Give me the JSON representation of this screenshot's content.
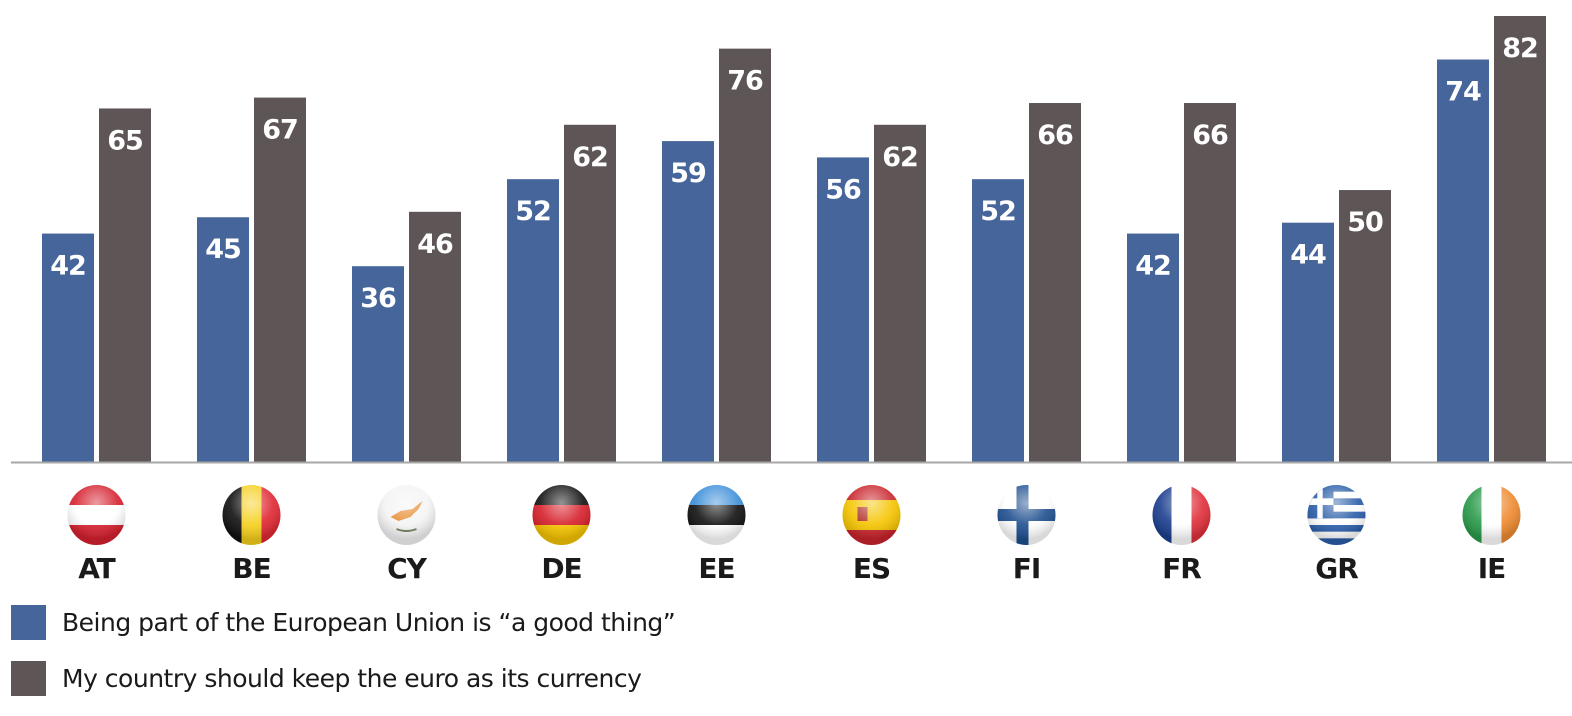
{
  "chart_data": {
    "type": "bar",
    "title": "",
    "xlabel": "",
    "ylabel": "",
    "ylim": [
      0,
      84
    ],
    "grid": false,
    "categories": [
      "AT",
      "BE",
      "CY",
      "DE",
      "EE",
      "ES",
      "FI",
      "FR",
      "GR",
      "IE"
    ],
    "category_icons": [
      "flag-austria",
      "flag-belgium",
      "flag-cyprus",
      "flag-germany",
      "flag-estonia",
      "flag-spain",
      "flag-finland",
      "flag-france",
      "flag-greece",
      "flag-ireland"
    ],
    "series": [
      {
        "name": "Being part of the European Union is “a good thing”",
        "color": "#46659b",
        "values": [
          42,
          45,
          36,
          52,
          59,
          56,
          52,
          42,
          44,
          74
        ]
      },
      {
        "name": "My country should keep the euro as its currency",
        "color": "#5e5556",
        "values": [
          65,
          67,
          46,
          62,
          76,
          62,
          66,
          66,
          50,
          82
        ]
      }
    ],
    "legend_position": "bottom-left"
  },
  "legend": {
    "items": [
      {
        "label": "Being part of the European Union is “a good thing”",
        "color": "#46659b"
      },
      {
        "label": "My country should keep the euro as its currency",
        "color": "#5e5556"
      }
    ]
  },
  "colors": {
    "axis": "#a7a7a7"
  }
}
